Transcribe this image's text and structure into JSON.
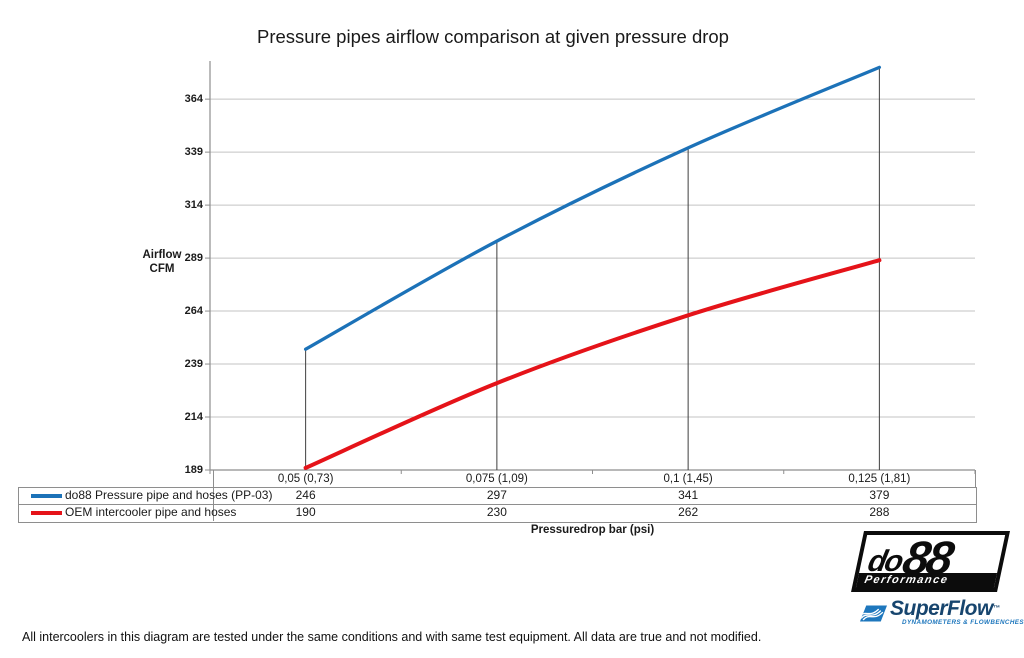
{
  "title": "Pressure pipes airflow comparison at given pressure drop",
  "chart_data": {
    "type": "line",
    "categories": [
      "0,05 (0,73)",
      "0,075 (1,09)",
      "0,1 (1,45)",
      "0,125 (1,81)"
    ],
    "series": [
      {
        "name": "do88 Pressure pipe and hoses (PP-03)",
        "color": "#1c72b8",
        "stroke_width": 3.3,
        "values": [
          246,
          297,
          341,
          379
        ]
      },
      {
        "name": "OEM intercooler pipe and hoses",
        "color": "#e51319",
        "stroke_width": 4,
        "values": [
          190,
          230,
          262,
          288
        ]
      }
    ],
    "xlabel": "Pressuredrop bar (psi)",
    "ylabel_lines": [
      "Airflow",
      "CFM"
    ],
    "yticks": [
      364,
      339,
      314,
      289,
      264,
      239,
      214,
      189
    ],
    "ylim": [
      189,
      382
    ],
    "grid": true,
    "smooth": true,
    "droplines_from_first_series": true,
    "legend_position": "table-left"
  },
  "footer": {
    "disclaimer": "All intercoolers in this diagram are tested under the same conditions and with same test equipment. All data are true and not modified."
  },
  "logos": {
    "do88": {
      "brand_prefix": "do",
      "brand_suffix": "88",
      "tagline": "Performance"
    },
    "superflow": {
      "brand": "SuperFlow",
      "trademark": "™",
      "tagline": "DYNAMOMETERS & FLOWBENCHES"
    }
  },
  "colors": {
    "series_blue": "#1c72b8",
    "series_red": "#e51319",
    "gridline": "#c3c3c3",
    "axis": "#8e8e8e",
    "dropline": "#3f3f3f",
    "table_border": "#8e8e8e",
    "logo_blue": "#1e77bd",
    "logo_navy": "#17456e"
  }
}
